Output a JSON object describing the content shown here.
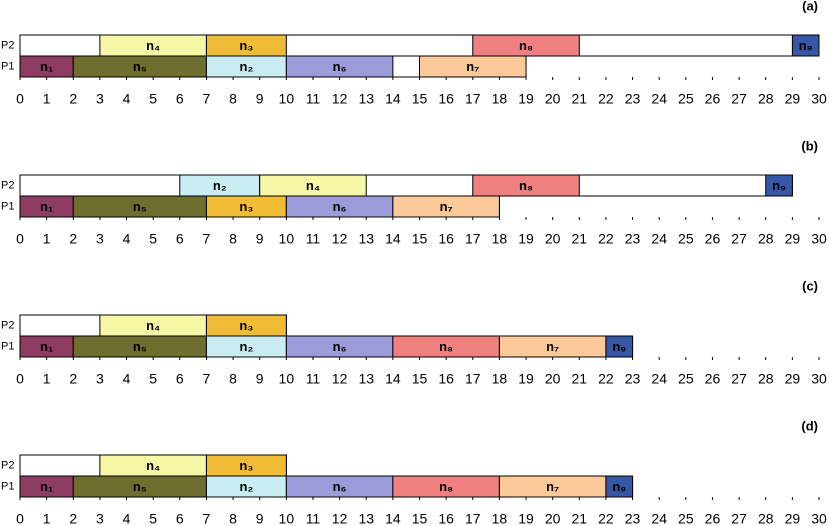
{
  "chart_data": [
    {
      "type": "gantt",
      "title": "(a)",
      "xlim": [
        0,
        30
      ],
      "xticks": [
        0,
        1,
        2,
        3,
        4,
        5,
        6,
        7,
        8,
        9,
        10,
        11,
        12,
        13,
        14,
        15,
        16,
        17,
        18,
        19,
        20,
        21,
        22,
        23,
        24,
        25,
        26,
        27,
        28,
        29,
        30
      ],
      "rows": [
        {
          "name": "P2",
          "tasks": [
            {
              "name": "n₄",
              "start": 3,
              "end": 7,
              "color": "#f7f7a8"
            },
            {
              "name": "n₃",
              "start": 7,
              "end": 10,
              "color": "#f0bc35"
            },
            {
              "name": "n₈",
              "start": 17,
              "end": 21,
              "color": "#f08080"
            },
            {
              "name": "n₉",
              "start": 29,
              "end": 30,
              "color": "#3557a6"
            }
          ]
        },
        {
          "name": "P1",
          "tasks": [
            {
              "name": "n₁",
              "start": 0,
              "end": 2,
              "color": "#8e3c62"
            },
            {
              "name": "n₅",
              "start": 2,
              "end": 7,
              "color": "#6e6e2e"
            },
            {
              "name": "n₂",
              "start": 7,
              "end": 10,
              "color": "#c9edf2"
            },
            {
              "name": "n₆",
              "start": 10,
              "end": 14,
              "color": "#9b9bd9"
            },
            {
              "name": "n₇",
              "start": 15,
              "end": 19,
              "color": "#fcc999"
            }
          ]
        }
      ]
    },
    {
      "type": "gantt",
      "title": "(b)",
      "xlim": [
        0,
        30
      ],
      "xticks": [
        0,
        1,
        2,
        3,
        4,
        5,
        6,
        7,
        8,
        9,
        10,
        11,
        12,
        13,
        14,
        15,
        16,
        17,
        18,
        19,
        20,
        21,
        22,
        23,
        24,
        25,
        26,
        27,
        28,
        29,
        30
      ],
      "rows": [
        {
          "name": "P2",
          "tasks": [
            {
              "name": "n₂",
              "start": 6,
              "end": 9,
              "color": "#c9edf2"
            },
            {
              "name": "n₄",
              "start": 9,
              "end": 13,
              "color": "#f7f7a8"
            },
            {
              "name": "n₈",
              "start": 17,
              "end": 21,
              "color": "#f08080"
            },
            {
              "name": "n₉",
              "start": 28,
              "end": 29,
              "color": "#3557a6"
            }
          ]
        },
        {
          "name": "P1",
          "tasks": [
            {
              "name": "n₁",
              "start": 0,
              "end": 2,
              "color": "#8e3c62"
            },
            {
              "name": "n₅",
              "start": 2,
              "end": 7,
              "color": "#6e6e2e"
            },
            {
              "name": "n₃",
              "start": 7,
              "end": 10,
              "color": "#f0bc35"
            },
            {
              "name": "n₆",
              "start": 10,
              "end": 14,
              "color": "#9b9bd9"
            },
            {
              "name": "n₇",
              "start": 14,
              "end": 18,
              "color": "#fcc999"
            }
          ]
        }
      ]
    },
    {
      "type": "gantt",
      "title": "(c)",
      "xlim": [
        0,
        30
      ],
      "xticks": [
        0,
        1,
        2,
        3,
        4,
        5,
        6,
        7,
        8,
        9,
        10,
        11,
        12,
        13,
        14,
        15,
        16,
        17,
        18,
        19,
        20,
        21,
        22,
        23,
        24,
        25,
        26,
        27,
        28,
        29,
        30
      ],
      "rows": [
        {
          "name": "P2",
          "tasks": [
            {
              "name": "n₄",
              "start": 3,
              "end": 7,
              "color": "#f7f7a8"
            },
            {
              "name": "n₃",
              "start": 7,
              "end": 10,
              "color": "#f0bc35"
            }
          ]
        },
        {
          "name": "P1",
          "tasks": [
            {
              "name": "n₁",
              "start": 0,
              "end": 2,
              "color": "#8e3c62"
            },
            {
              "name": "n₅",
              "start": 2,
              "end": 7,
              "color": "#6e6e2e"
            },
            {
              "name": "n₂",
              "start": 7,
              "end": 10,
              "color": "#c9edf2"
            },
            {
              "name": "n₆",
              "start": 10,
              "end": 14,
              "color": "#9b9bd9"
            },
            {
              "name": "n₈",
              "start": 14,
              "end": 18,
              "color": "#f08080"
            },
            {
              "name": "n₇",
              "start": 18,
              "end": 22,
              "color": "#fcc999"
            },
            {
              "name": "n₉",
              "start": 22,
              "end": 23,
              "color": "#3557a6"
            }
          ]
        }
      ]
    },
    {
      "type": "gantt",
      "title": "(d)",
      "xlim": [
        0,
        30
      ],
      "xticks": [
        0,
        1,
        2,
        3,
        4,
        5,
        6,
        7,
        8,
        9,
        10,
        11,
        12,
        13,
        14,
        15,
        16,
        17,
        18,
        19,
        20,
        21,
        22,
        23,
        24,
        25,
        26,
        27,
        28,
        29,
        30
      ],
      "rows": [
        {
          "name": "P2",
          "tasks": [
            {
              "name": "n₄",
              "start": 3,
              "end": 7,
              "color": "#f7f7a8"
            },
            {
              "name": "n₃",
              "start": 7,
              "end": 10,
              "color": "#f0bc35"
            }
          ]
        },
        {
          "name": "P1",
          "tasks": [
            {
              "name": "n₁",
              "start": 0,
              "end": 2,
              "color": "#8e3c62"
            },
            {
              "name": "n₅",
              "start": 2,
              "end": 7,
              "color": "#6e6e2e"
            },
            {
              "name": "n₂",
              "start": 7,
              "end": 10,
              "color": "#c9edf2"
            },
            {
              "name": "n₆",
              "start": 10,
              "end": 14,
              "color": "#9b9bd9"
            },
            {
              "name": "n₈",
              "start": 14,
              "end": 18,
              "color": "#f08080"
            },
            {
              "name": "n₇",
              "start": 18,
              "end": 22,
              "color": "#fcc999"
            },
            {
              "name": "n₉",
              "start": 22,
              "end": 23,
              "color": "#3557a6"
            }
          ]
        }
      ]
    }
  ]
}
